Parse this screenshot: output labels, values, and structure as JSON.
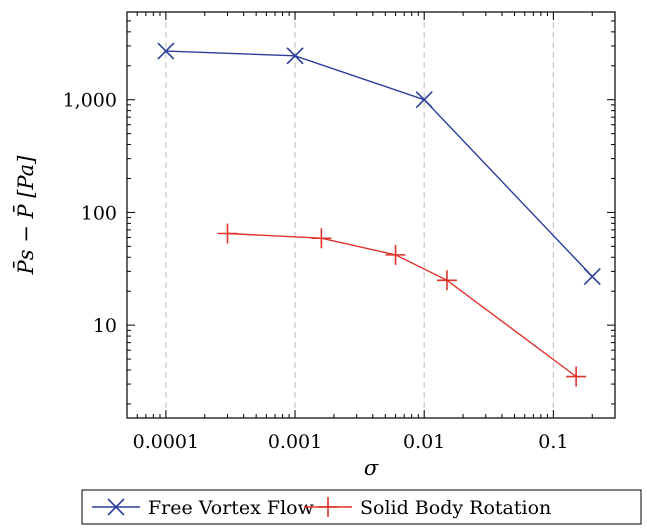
{
  "chart_data": {
    "type": "line",
    "xlabel": "σ",
    "ylabel": "P̄s − P̄ [Pa]",
    "x_scale": "log",
    "y_scale": "log",
    "xlim": [
      5e-05,
      0.3
    ],
    "ylim": [
      1.5,
      6000
    ],
    "grid": "vertical dashed at major x ticks",
    "legend_position": "bottom",
    "x_ticks": [
      {
        "value": 0.0001,
        "label": "0.0001"
      },
      {
        "value": 0.001,
        "label": "0.001"
      },
      {
        "value": 0.01,
        "label": "0.01"
      },
      {
        "value": 0.1,
        "label": "0.1"
      }
    ],
    "y_ticks": [
      {
        "value": 10,
        "label": "10"
      },
      {
        "value": 100,
        "label": "100"
      },
      {
        "value": 1000,
        "label": "1,000"
      }
    ],
    "series": [
      {
        "name": "Free Vortex Flow",
        "color": "#2b3d9b",
        "marker": "x",
        "x": [
          0.0001,
          0.001,
          0.01,
          0.2
        ],
        "y": [
          2700,
          2450,
          1000,
          27
        ]
      },
      {
        "name": "Solid Body Rotation",
        "color": "#e0312b",
        "marker": "+",
        "x": [
          0.0003,
          0.0016,
          0.006,
          0.015,
          0.15
        ],
        "y": [
          65,
          59,
          42,
          25,
          3.5
        ]
      }
    ]
  }
}
